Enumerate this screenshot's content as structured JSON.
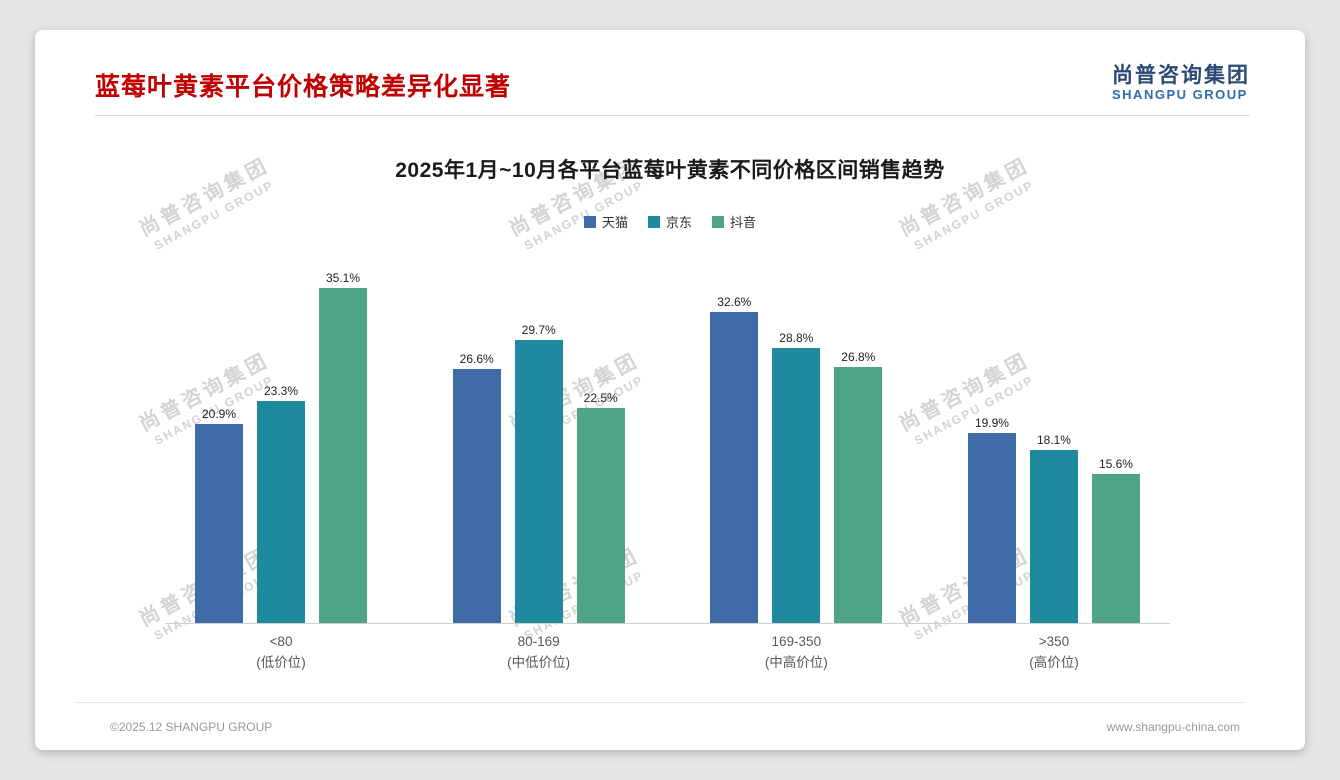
{
  "page": {
    "title": "蓝莓叶黄素平台价格策略差异化显著",
    "logo": {
      "cn": "尚普咨询集团",
      "en": "SHANGPU GROUP"
    },
    "watermark": {
      "line1": "尚普咨询集团",
      "line2": "SHANGPU GROUP"
    },
    "footer": {
      "left": "©2025.12 SHANGPU GROUP",
      "right": "www.shangpu-china.com"
    }
  },
  "chart_data": {
    "type": "bar",
    "title": "2025年1月~10月各平台蓝莓叶黄素不同价格区间销售趋势",
    "categories": [
      {
        "label": "<80",
        "sub": "(低价位)"
      },
      {
        "label": "80-169",
        "sub": "(中低价位)"
      },
      {
        "label": "169-350",
        "sub": "(中高价位)"
      },
      {
        "label": ">350",
        "sub": "(高价位)"
      }
    ],
    "series": [
      {
        "name": "天猫",
        "color": "#3F6CA6",
        "values": [
          20.9,
          26.6,
          32.6,
          19.9
        ]
      },
      {
        "name": "京东",
        "color": "#1F8A9E",
        "values": [
          23.3,
          29.7,
          28.8,
          18.1
        ]
      },
      {
        "name": "抖音",
        "color": "#4FA389",
        "values": [
          35.1,
          22.5,
          26.8,
          15.6
        ]
      }
    ],
    "value_suffix": "%",
    "ylim": [
      0,
      37
    ],
    "grid": false,
    "legend_position": "top"
  }
}
